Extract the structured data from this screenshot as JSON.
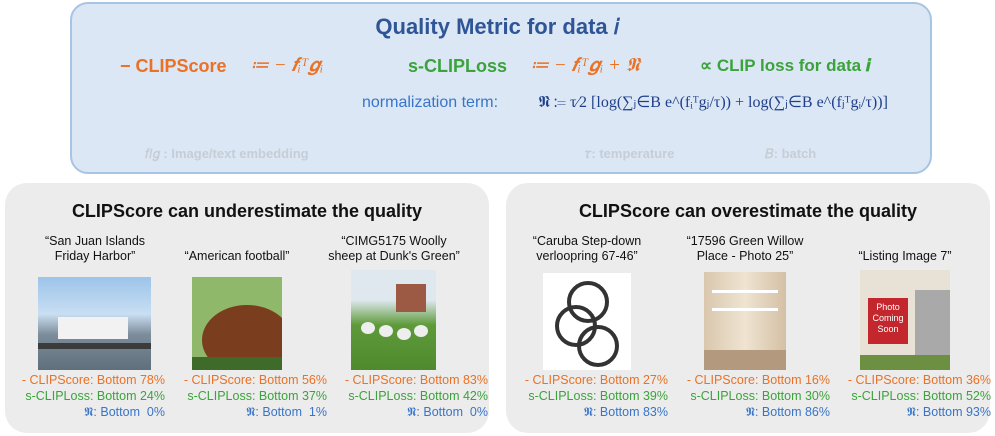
{
  "header": {
    "title": "Quality Metric for data 𝑖",
    "clipscore_name": "− CLIPScore",
    "clipscore_formula": "≔ − 𝒇ᵢᵀ𝒈ᵢ",
    "sclip_name": "s-CLIPLoss",
    "sclip_formula": "≔ − 𝒇ᵢᵀ𝒈ᵢ + 𝕹",
    "proportional": "∝ CLIP loss for data 𝒊",
    "norm_label": "normalization term:",
    "norm_formula": "𝕹 ≔ τ⁄2 [log(∑ⱼ∈B e^(fᵢᵀgⱼ/τ)) + log(∑ⱼ∈B e^(fⱼᵀgᵢ/τ))]",
    "legend": [
      "𝑓/𝑔 : Image/text embedding",
      "𝜏: temperature",
      "𝐵: batch"
    ]
  },
  "panels": [
    {
      "title": "CLIPScore can underestimate the quality",
      "items": [
        {
          "caption": [
            "“San Juan Islands",
            "Friday Harbor”"
          ],
          "clipscore": "- CLIPScore: Bottom 78%",
          "sclip": "s-CLIPLoss: Bottom 24%",
          "norm": "𝕹: Bottom  0%"
        },
        {
          "caption": [
            "“American football”"
          ],
          "clipscore": "- CLIPScore: Bottom 56%",
          "sclip": "s-CLIPLoss: Bottom 37%",
          "norm": "𝕹: Bottom  1%"
        },
        {
          "caption": [
            "“CIMG5175 Woolly",
            "sheep at Dunk's Green”"
          ],
          "clipscore": "- CLIPScore: Bottom 83%",
          "sclip": "s-CLIPLoss: Bottom 42%",
          "norm": "𝕹: Bottom  0%"
        }
      ]
    },
    {
      "title": "CLIPScore can overestimate the quality",
      "items": [
        {
          "caption": [
            "“Caruba Step-down",
            "verloopring 67-46”"
          ],
          "clipscore": "- CLIPScore: Bottom 27%",
          "sclip": "s-CLIPLoss: Bottom 39%",
          "norm": "𝕹: Bottom 83%"
        },
        {
          "caption": [
            "“17596 Green Willow",
            "Place - Photo 25”"
          ],
          "clipscore": "- CLIPScore: Bottom 16%",
          "sclip": "s-CLIPLoss: Bottom 30%",
          "norm": "𝕹: Bottom 86%"
        },
        {
          "caption": [
            "“Listing Image 7”"
          ],
          "clipscore": "- CLIPScore: Bottom 36%",
          "sclip": "s-CLIPLoss: Bottom 52%",
          "norm": "𝕹: Bottom 93%"
        }
      ]
    }
  ],
  "sign": [
    "Photo",
    "Coming",
    "Soon"
  ]
}
